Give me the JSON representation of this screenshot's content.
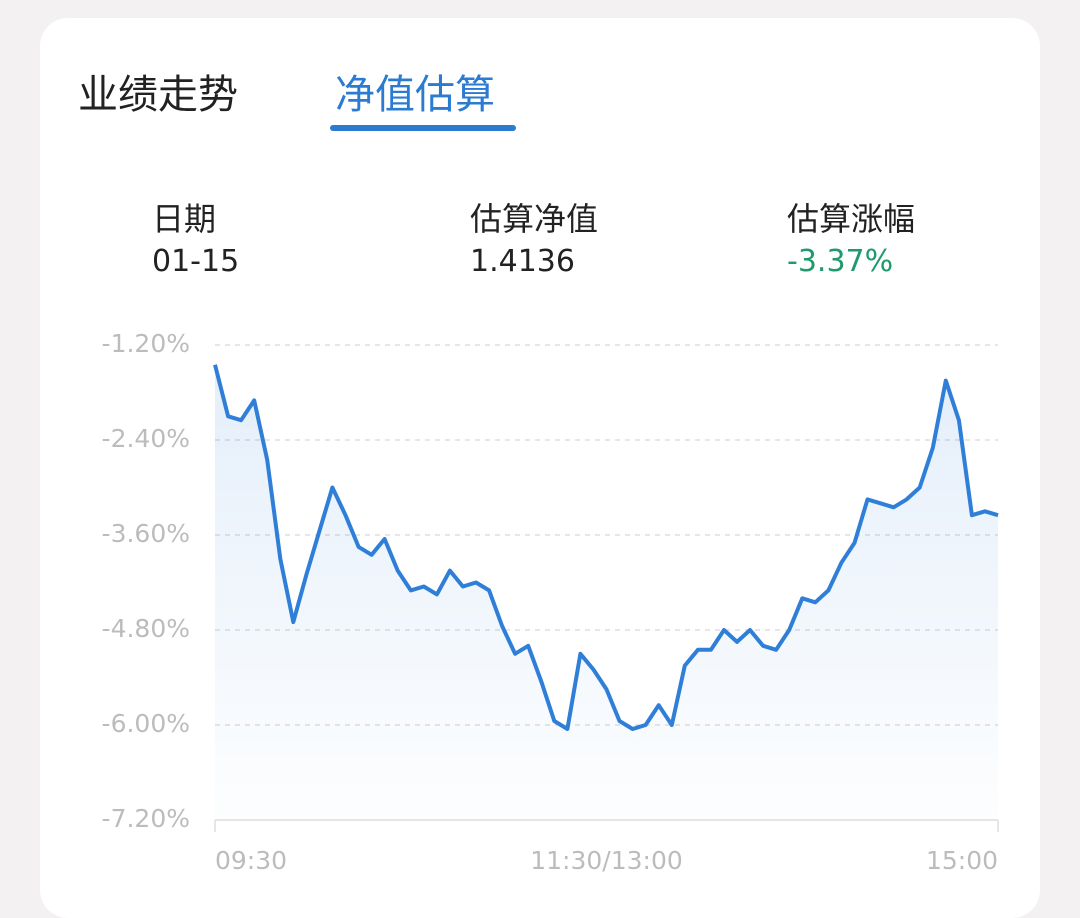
{
  "tabs": [
    {
      "label": "业绩走势",
      "active": false
    },
    {
      "label": "净值估算",
      "active": true
    }
  ],
  "stats": [
    {
      "label": "日期",
      "value": "01-15"
    },
    {
      "label": "估算净值",
      "value": "1.4136"
    },
    {
      "label": "估算涨幅",
      "value": "-3.37%",
      "color": "#1f9a6d"
    }
  ],
  "chart_data": {
    "type": "line",
    "color": "#2f7fd8",
    "grid": true,
    "categories": [
      "09:30",
      null,
      null,
      null,
      null,
      null,
      null,
      null,
      null,
      null,
      null,
      null,
      null,
      null,
      null,
      null,
      null,
      null,
      null,
      null,
      null,
      null,
      null,
      null,
      null,
      null,
      null,
      null,
      null,
      null,
      "11:30/13:00",
      null,
      null,
      null,
      null,
      null,
      null,
      null,
      null,
      null,
      null,
      null,
      null,
      null,
      null,
      null,
      null,
      null,
      null,
      null,
      null,
      null,
      null,
      null,
      null,
      null,
      null,
      null,
      null,
      null,
      "15:00"
    ],
    "values": [
      -1.45,
      -2.1,
      -2.15,
      -1.9,
      -2.65,
      -3.9,
      -4.7,
      -4.1,
      -3.55,
      -3.0,
      -3.35,
      -3.75,
      -3.85,
      -3.65,
      -4.05,
      -4.3,
      -4.25,
      -4.35,
      -4.05,
      -4.25,
      -4.2,
      -4.3,
      -4.75,
      -5.1,
      -5.0,
      -5.45,
      -5.95,
      -6.05,
      -5.1,
      -5.3,
      -5.55,
      -5.95,
      -6.05,
      -6.0,
      -5.75,
      -6.0,
      -5.25,
      -5.05,
      -5.05,
      -4.8,
      -4.95,
      -4.8,
      -5.0,
      -5.05,
      -4.8,
      -4.4,
      -4.45,
      -4.3,
      -3.95,
      -3.7,
      -3.15,
      -3.2,
      -3.25,
      -3.15,
      -3.0,
      -2.5,
      -1.65,
      -2.15,
      -3.35,
      -3.3,
      -3.35
    ],
    "ylim": [
      -7.2,
      -1.2
    ],
    "yticks": [
      {
        "value": -1.2,
        "label": "-1.20%"
      },
      {
        "value": -2.4,
        "label": "-2.40%"
      },
      {
        "value": -3.6,
        "label": "-3.60%"
      },
      {
        "value": -4.8,
        "label": "-4.80%"
      },
      {
        "value": -6.0,
        "label": "-6.00%"
      },
      {
        "value": -7.2,
        "label": "-7.20%"
      }
    ]
  }
}
